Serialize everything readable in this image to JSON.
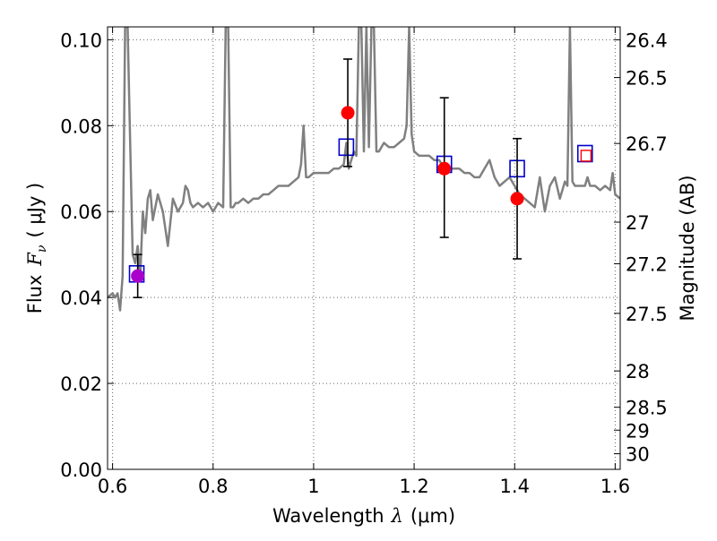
{
  "chart_data": {
    "type": "scatter",
    "xlabel_text": "Wavelength",
    "xlabel_symbol": "λ",
    "xlabel_unit": "(μm)",
    "ylabel_text": "Flux",
    "ylabel_symbol": "F",
    "ylabel_sub": "ν",
    "ylabel_unit": "( μJy )",
    "y2label": "Magnitude (AB)",
    "xlim": [
      0.59,
      1.61
    ],
    "ylim": [
      0.0,
      0.103
    ],
    "grid": true,
    "x_ticks": [
      0.6,
      0.8,
      1.0,
      1.2,
      1.4,
      1.6
    ],
    "x_tick_labels": [
      "0.6",
      "0.8",
      "1",
      "1.2",
      "1.4",
      "1.6"
    ],
    "y_ticks": [
      0.0,
      0.02,
      0.04,
      0.06,
      0.08,
      0.1
    ],
    "y_tick_labels": [
      "0.00",
      "0.02",
      "0.04",
      "0.06",
      "0.08",
      "0.10"
    ],
    "mag_ticks": [
      26.4,
      26.5,
      26.7,
      27,
      27.2,
      27.5,
      28,
      28.5,
      29,
      30
    ],
    "mag_tick_labels": [
      "26.4",
      "26.5",
      "26.7",
      "27",
      "27.2",
      "27.5",
      "28",
      "28.5",
      "29",
      "30"
    ],
    "colors": {
      "model": "#808080",
      "model_box": "#0000cc",
      "observed": "#ff0000",
      "uv_point": "#aa00cc",
      "errorbar": "#000000",
      "grid": "#666666"
    },
    "model_spectrum": {
      "x": [
        0.59,
        0.6,
        0.605,
        0.61,
        0.615,
        0.62,
        0.625,
        0.63,
        0.64,
        0.645,
        0.65,
        0.655,
        0.66,
        0.665,
        0.67,
        0.675,
        0.68,
        0.69,
        0.7,
        0.71,
        0.72,
        0.73,
        0.74,
        0.745,
        0.75,
        0.755,
        0.76,
        0.77,
        0.78,
        0.79,
        0.8,
        0.81,
        0.82,
        0.825,
        0.83,
        0.835,
        0.84,
        0.845,
        0.85,
        0.86,
        0.87,
        0.88,
        0.89,
        0.9,
        0.91,
        0.92,
        0.93,
        0.94,
        0.95,
        0.96,
        0.97,
        0.975,
        0.98,
        0.985,
        0.99,
        1.0,
        1.01,
        1.02,
        1.03,
        1.04,
        1.05,
        1.06,
        1.065,
        1.07,
        1.075,
        1.08,
        1.085,
        1.09,
        1.095,
        1.1,
        1.105,
        1.11,
        1.115,
        1.12,
        1.125,
        1.13,
        1.14,
        1.15,
        1.16,
        1.17,
        1.18,
        1.185,
        1.19,
        1.195,
        1.2,
        1.21,
        1.22,
        1.23,
        1.24,
        1.25,
        1.26,
        1.27,
        1.28,
        1.29,
        1.3,
        1.31,
        1.32,
        1.33,
        1.34,
        1.35,
        1.36,
        1.37,
        1.38,
        1.39,
        1.4,
        1.41,
        1.42,
        1.43,
        1.44,
        1.45,
        1.46,
        1.47,
        1.48,
        1.49,
        1.5,
        1.505,
        1.51,
        1.515,
        1.52,
        1.53,
        1.54,
        1.545,
        1.55,
        1.56,
        1.57,
        1.58,
        1.59,
        1.595,
        1.6,
        1.61
      ],
      "y": [
        0.04,
        0.041,
        0.04,
        0.041,
        0.037,
        0.045,
        0.103,
        0.103,
        0.05,
        0.048,
        0.052,
        0.045,
        0.06,
        0.055,
        0.063,
        0.065,
        0.058,
        0.064,
        0.06,
        0.052,
        0.063,
        0.06,
        0.062,
        0.066,
        0.065,
        0.062,
        0.061,
        0.062,
        0.061,
        0.062,
        0.06,
        0.062,
        0.061,
        0.103,
        0.103,
        0.061,
        0.061,
        0.062,
        0.062,
        0.063,
        0.062,
        0.063,
        0.063,
        0.064,
        0.064,
        0.065,
        0.066,
        0.066,
        0.066,
        0.067,
        0.068,
        0.071,
        0.08,
        0.068,
        0.068,
        0.069,
        0.069,
        0.069,
        0.069,
        0.07,
        0.07,
        0.071,
        0.076,
        0.07,
        0.072,
        0.074,
        0.073,
        0.103,
        0.103,
        0.074,
        0.103,
        0.075,
        0.103,
        0.103,
        0.074,
        0.074,
        0.076,
        0.075,
        0.075,
        0.076,
        0.077,
        0.08,
        0.103,
        0.078,
        0.074,
        0.073,
        0.073,
        0.073,
        0.072,
        0.072,
        0.07,
        0.07,
        0.07,
        0.07,
        0.069,
        0.069,
        0.068,
        0.068,
        0.07,
        0.072,
        0.068,
        0.066,
        0.067,
        0.068,
        0.066,
        0.064,
        0.063,
        0.062,
        0.061,
        0.068,
        0.06,
        0.066,
        0.068,
        0.063,
        0.067,
        0.066,
        0.103,
        0.067,
        0.066,
        0.066,
        0.066,
        0.068,
        0.066,
        0.066,
        0.065,
        0.066,
        0.065,
        0.069,
        0.064,
        0.063
      ]
    },
    "series": [
      {
        "marker": "open-square",
        "points": [
          {
            "x": 0.648,
            "y": 0.0455
          },
          {
            "x": 1.065,
            "y": 0.075
          },
          {
            "x": 1.26,
            "y": 0.071
          },
          {
            "x": 1.405,
            "y": 0.07
          },
          {
            "x": 1.54,
            "y": 0.0735
          }
        ]
      },
      {
        "marker": "filled-circle-with-errorbar",
        "points": [
          {
            "x": 0.65,
            "y": 0.045,
            "ylow": 0.04,
            "yhigh": 0.05
          },
          {
            "x": 1.068,
            "y": 0.083,
            "ylow": 0.0705,
            "yhigh": 0.0955
          },
          {
            "x": 1.26,
            "y": 0.07,
            "ylow": 0.054,
            "yhigh": 0.0865
          },
          {
            "x": 1.405,
            "y": 0.063,
            "ylow": 0.049,
            "yhigh": 0.077
          }
        ]
      },
      {
        "marker": "small-open-square",
        "points": [
          {
            "x": 1.542,
            "y": 0.073
          }
        ]
      }
    ]
  }
}
